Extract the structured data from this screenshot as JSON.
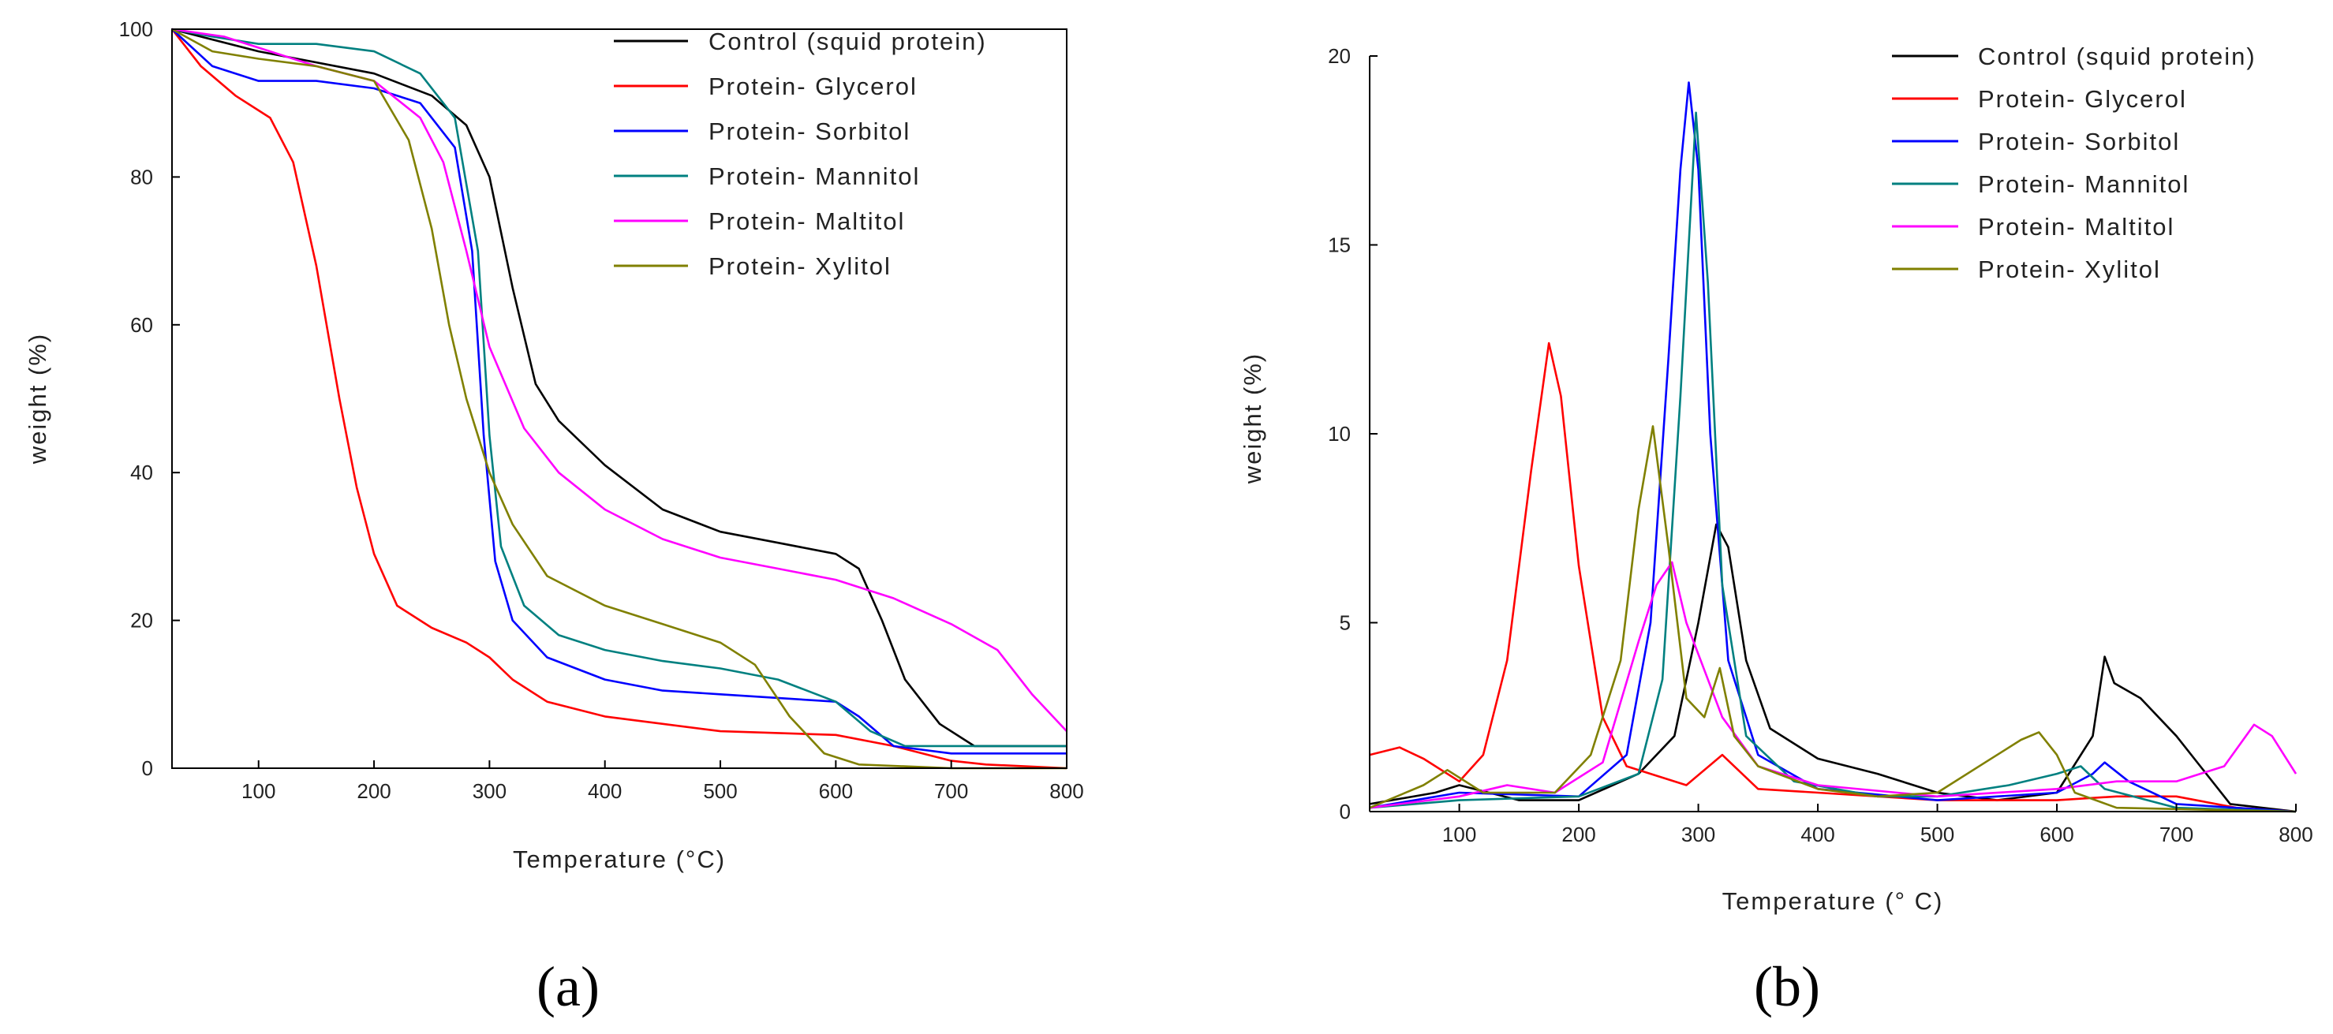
{
  "chart_data": [
    {
      "id": "a",
      "panel_label": "(a)",
      "type": "line",
      "xlabel": "Temperature (°C)",
      "ylabel": "weight (%)",
      "xlim": [
        25,
        800
      ],
      "ylim": [
        0,
        100
      ],
      "xticks": [
        100,
        200,
        300,
        400,
        500,
        600,
        700,
        800
      ],
      "yticks": [
        0,
        20,
        40,
        60,
        80,
        100
      ],
      "legend_position": "top-right",
      "series": [
        {
          "name": "Control (squid protein)",
          "color": "#000000",
          "points": [
            [
              25,
              100
            ],
            [
              100,
              97
            ],
            [
              200,
              94
            ],
            [
              250,
              91
            ],
            [
              280,
              87
            ],
            [
              300,
              80
            ],
            [
              320,
              65
            ],
            [
              340,
              52
            ],
            [
              360,
              47
            ],
            [
              400,
              41
            ],
            [
              450,
              35
            ],
            [
              500,
              32
            ],
            [
              550,
              30.5
            ],
            [
              600,
              29
            ],
            [
              620,
              27
            ],
            [
              640,
              20
            ],
            [
              660,
              12
            ],
            [
              690,
              6
            ],
            [
              720,
              3
            ],
            [
              800,
              3
            ]
          ]
        },
        {
          "name": "Protein- Glycerol",
          "color": "#ff0000",
          "points": [
            [
              25,
              100
            ],
            [
              50,
              95
            ],
            [
              80,
              91
            ],
            [
              110,
              88
            ],
            [
              130,
              82
            ],
            [
              150,
              68
            ],
            [
              170,
              50
            ],
            [
              185,
              38
            ],
            [
              200,
              29
            ],
            [
              220,
              22
            ],
            [
              250,
              19
            ],
            [
              280,
              17
            ],
            [
              300,
              15
            ],
            [
              320,
              12
            ],
            [
              350,
              9
            ],
            [
              400,
              7
            ],
            [
              500,
              5
            ],
            [
              600,
              4.5
            ],
            [
              650,
              3
            ],
            [
              700,
              1
            ],
            [
              730,
              0.5
            ],
            [
              800,
              0
            ]
          ]
        },
        {
          "name": "Protein- Sorbitol",
          "color": "#0000ff",
          "points": [
            [
              25,
              100
            ],
            [
              60,
              95
            ],
            [
              100,
              93
            ],
            [
              150,
              93
            ],
            [
              200,
              92
            ],
            [
              240,
              90
            ],
            [
              270,
              84
            ],
            [
              285,
              70
            ],
            [
              295,
              45
            ],
            [
              305,
              28
            ],
            [
              320,
              20
            ],
            [
              350,
              15
            ],
            [
              400,
              12
            ],
            [
              450,
              10.5
            ],
            [
              500,
              10
            ],
            [
              600,
              9
            ],
            [
              620,
              7
            ],
            [
              650,
              3
            ],
            [
              700,
              2
            ],
            [
              800,
              2
            ]
          ]
        },
        {
          "name": "Protein- Mannitol",
          "color": "#008080",
          "points": [
            [
              25,
              100
            ],
            [
              60,
              99
            ],
            [
              100,
              98
            ],
            [
              150,
              98
            ],
            [
              200,
              97
            ],
            [
              240,
              94
            ],
            [
              270,
              88
            ],
            [
              290,
              70
            ],
            [
              300,
              45
            ],
            [
              310,
              30
            ],
            [
              330,
              22
            ],
            [
              360,
              18
            ],
            [
              400,
              16
            ],
            [
              450,
              14.5
            ],
            [
              500,
              13.5
            ],
            [
              550,
              12
            ],
            [
              600,
              9
            ],
            [
              630,
              5
            ],
            [
              660,
              3
            ],
            [
              800,
              3
            ]
          ]
        },
        {
          "name": "Protein- Maltitol",
          "color": "#ff00ff",
          "points": [
            [
              25,
              100
            ],
            [
              70,
              99
            ],
            [
              150,
              95
            ],
            [
              200,
              93
            ],
            [
              240,
              88
            ],
            [
              260,
              82
            ],
            [
              280,
              70
            ],
            [
              300,
              57
            ],
            [
              330,
              46
            ],
            [
              360,
              40
            ],
            [
              400,
              35
            ],
            [
              450,
              31
            ],
            [
              500,
              28.5
            ],
            [
              550,
              27
            ],
            [
              600,
              25.5
            ],
            [
              650,
              23
            ],
            [
              700,
              19.5
            ],
            [
              740,
              16
            ],
            [
              770,
              10
            ],
            [
              800,
              5
            ]
          ]
        },
        {
          "name": "Protein- Xylitol",
          "color": "#808000",
          "points": [
            [
              25,
              100
            ],
            [
              60,
              97
            ],
            [
              100,
              96
            ],
            [
              150,
              95
            ],
            [
              200,
              93
            ],
            [
              230,
              85
            ],
            [
              250,
              73
            ],
            [
              265,
              60
            ],
            [
              280,
              50
            ],
            [
              300,
              40
            ],
            [
              320,
              33
            ],
            [
              350,
              26
            ],
            [
              400,
              22
            ],
            [
              450,
              19.5
            ],
            [
              500,
              17
            ],
            [
              530,
              14
            ],
            [
              560,
              7
            ],
            [
              590,
              2
            ],
            [
              620,
              0.5
            ],
            [
              700,
              0
            ],
            [
              800,
              0
            ]
          ]
        }
      ]
    },
    {
      "id": "b",
      "panel_label": "(b)",
      "type": "line",
      "xlabel": "Temperature (° C)",
      "ylabel": "weight (%)",
      "xlim": [
        25,
        800
      ],
      "ylim": [
        0,
        20
      ],
      "xticks": [
        100,
        200,
        300,
        400,
        500,
        600,
        700,
        800
      ],
      "yticks": [
        0,
        5,
        10,
        15,
        20
      ],
      "legend_position": "top-right",
      "series": [
        {
          "name": "Control (squid protein)",
          "color": "#000000",
          "points": [
            [
              25,
              0.2
            ],
            [
              80,
              0.5
            ],
            [
              100,
              0.7
            ],
            [
              150,
              0.3
            ],
            [
              200,
              0.3
            ],
            [
              250,
              1.0
            ],
            [
              280,
              2.0
            ],
            [
              300,
              5.0
            ],
            [
              315,
              7.6
            ],
            [
              325,
              7.0
            ],
            [
              340,
              4.0
            ],
            [
              360,
              2.2
            ],
            [
              400,
              1.4
            ],
            [
              450,
              1.0
            ],
            [
              500,
              0.5
            ],
            [
              550,
              0.3
            ],
            [
              600,
              0.5
            ],
            [
              630,
              2.0
            ],
            [
              640,
              4.1
            ],
            [
              648,
              3.4
            ],
            [
              670,
              3.0
            ],
            [
              700,
              2.0
            ],
            [
              720,
              1.2
            ],
            [
              745,
              0.2
            ],
            [
              800,
              0
            ]
          ]
        },
        {
          "name": "Protein- Glycerol",
          "color": "#ff0000",
          "points": [
            [
              25,
              1.5
            ],
            [
              50,
              1.7
            ],
            [
              70,
              1.4
            ],
            [
              100,
              0.8
            ],
            [
              120,
              1.5
            ],
            [
              140,
              4.0
            ],
            [
              160,
              9.0
            ],
            [
              175,
              12.4
            ],
            [
              185,
              11.0
            ],
            [
              200,
              6.5
            ],
            [
              220,
              2.5
            ],
            [
              240,
              1.2
            ],
            [
              260,
              1.0
            ],
            [
              290,
              0.7
            ],
            [
              320,
              1.5
            ],
            [
              350,
              0.6
            ],
            [
              400,
              0.5
            ],
            [
              500,
              0.3
            ],
            [
              600,
              0.3
            ],
            [
              650,
              0.4
            ],
            [
              700,
              0.4
            ],
            [
              750,
              0.1
            ],
            [
              800,
              0
            ]
          ]
        },
        {
          "name": "Protein- Sorbitol",
          "color": "#0000ff",
          "points": [
            [
              25,
              0.1
            ],
            [
              100,
              0.5
            ],
            [
              200,
              0.4
            ],
            [
              240,
              1.5
            ],
            [
              260,
              5.0
            ],
            [
              275,
              12.0
            ],
            [
              285,
              17.0
            ],
            [
              292,
              19.3
            ],
            [
              300,
              17.0
            ],
            [
              310,
              10.0
            ],
            [
              325,
              4.0
            ],
            [
              350,
              1.5
            ],
            [
              400,
              0.6
            ],
            [
              500,
              0.3
            ],
            [
              600,
              0.5
            ],
            [
              630,
              1.0
            ],
            [
              640,
              1.3
            ],
            [
              660,
              0.8
            ],
            [
              700,
              0.2
            ],
            [
              800,
              0
            ]
          ]
        },
        {
          "name": "Protein- Mannitol",
          "color": "#008080",
          "points": [
            [
              25,
              0.1
            ],
            [
              100,
              0.3
            ],
            [
              200,
              0.4
            ],
            [
              250,
              1.0
            ],
            [
              270,
              3.5
            ],
            [
              285,
              11.0
            ],
            [
              298,
              18.5
            ],
            [
              308,
              14.0
            ],
            [
              320,
              6.0
            ],
            [
              340,
              2.0
            ],
            [
              380,
              0.8
            ],
            [
              450,
              0.4
            ],
            [
              500,
              0.4
            ],
            [
              560,
              0.7
            ],
            [
              600,
              1.0
            ],
            [
              620,
              1.2
            ],
            [
              640,
              0.6
            ],
            [
              700,
              0.1
            ],
            [
              800,
              0
            ]
          ]
        },
        {
          "name": "Protein- Maltitol",
          "color": "#ff00ff",
          "points": [
            [
              25,
              0.1
            ],
            [
              100,
              0.4
            ],
            [
              140,
              0.7
            ],
            [
              180,
              0.5
            ],
            [
              220,
              1.3
            ],
            [
              250,
              4.5
            ],
            [
              265,
              6.0
            ],
            [
              278,
              6.6
            ],
            [
              290,
              5.0
            ],
            [
              320,
              2.5
            ],
            [
              350,
              1.2
            ],
            [
              400,
              0.7
            ],
            [
              500,
              0.4
            ],
            [
              600,
              0.6
            ],
            [
              650,
              0.8
            ],
            [
              700,
              0.8
            ],
            [
              740,
              1.2
            ],
            [
              765,
              2.3
            ],
            [
              780,
              2.0
            ],
            [
              800,
              1.0
            ]
          ]
        },
        {
          "name": "Protein- Xylitol",
          "color": "#808000",
          "points": [
            [
              25,
              0.1
            ],
            [
              70,
              0.7
            ],
            [
              90,
              1.1
            ],
            [
              120,
              0.5
            ],
            [
              180,
              0.5
            ],
            [
              210,
              1.5
            ],
            [
              235,
              4.0
            ],
            [
              250,
              8.0
            ],
            [
              262,
              10.2
            ],
            [
              275,
              7.0
            ],
            [
              290,
              3.0
            ],
            [
              305,
              2.5
            ],
            [
              318,
              3.8
            ],
            [
              330,
              2.0
            ],
            [
              350,
              1.2
            ],
            [
              400,
              0.6
            ],
            [
              450,
              0.4
            ],
            [
              500,
              0.5
            ],
            [
              540,
              1.3
            ],
            [
              570,
              1.9
            ],
            [
              585,
              2.1
            ],
            [
              600,
              1.5
            ],
            [
              615,
              0.5
            ],
            [
              650,
              0.1
            ],
            [
              800,
              0
            ]
          ]
        }
      ]
    }
  ]
}
